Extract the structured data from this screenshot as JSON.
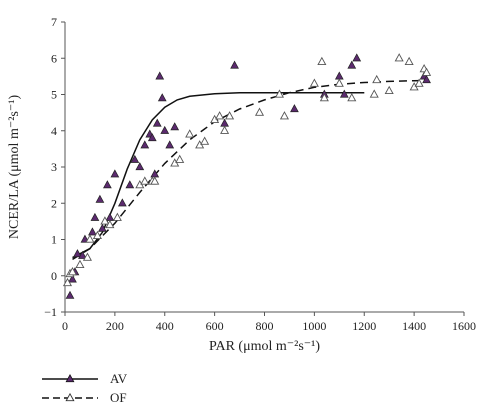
{
  "chart_data": {
    "type": "scatter",
    "xlabel": "PAR (μmol m⁻²s⁻¹)",
    "ylabel": "NCER/LA (μmol m⁻²s⁻¹)",
    "xlim": [
      0,
      1600
    ],
    "ylim": [
      -1,
      7
    ],
    "x_ticks": [
      "0",
      "200",
      "400",
      "600",
      "800",
      "1000",
      "1200",
      "1400",
      "1600"
    ],
    "y_ticks": [
      "−1",
      "0",
      "1",
      "2",
      "3",
      "4",
      "5",
      "6",
      "7"
    ],
    "grid": false,
    "legend_placement": "bottom-left",
    "series": [
      {
        "name": "AV",
        "marker": "filled-triangle",
        "marker_color": "#5b2a6e",
        "line_style": "solid",
        "points": [
          [
            20,
            -0.55
          ],
          [
            30,
            -0.1
          ],
          [
            40,
            0.1
          ],
          [
            50,
            0.6
          ],
          [
            70,
            0.55
          ],
          [
            80,
            1.0
          ],
          [
            110,
            1.2
          ],
          [
            120,
            1.6
          ],
          [
            140,
            2.1
          ],
          [
            150,
            1.3
          ],
          [
            170,
            2.5
          ],
          [
            180,
            1.6
          ],
          [
            200,
            2.8
          ],
          [
            230,
            2.0
          ],
          [
            260,
            2.5
          ],
          [
            280,
            3.2
          ],
          [
            300,
            3.0
          ],
          [
            320,
            3.6
          ],
          [
            340,
            3.9
          ],
          [
            350,
            3.8
          ],
          [
            360,
            2.8
          ],
          [
            370,
            4.2
          ],
          [
            380,
            5.5
          ],
          [
            390,
            4.9
          ],
          [
            400,
            4.0
          ],
          [
            420,
            3.6
          ],
          [
            440,
            4.1
          ],
          [
            640,
            4.2
          ],
          [
            680,
            5.8
          ],
          [
            920,
            4.6
          ],
          [
            1040,
            5.0
          ],
          [
            1100,
            5.5
          ],
          [
            1120,
            5.0
          ],
          [
            1150,
            5.8
          ],
          [
            1170,
            6.0
          ],
          [
            1440,
            5.5
          ],
          [
            1450,
            5.4
          ]
        ],
        "fit_curve": [
          [
            30,
            0.5
          ],
          [
            100,
            0.75
          ],
          [
            150,
            1.2
          ],
          [
            200,
            2.0
          ],
          [
            250,
            2.95
          ],
          [
            300,
            3.75
          ],
          [
            350,
            4.3
          ],
          [
            400,
            4.65
          ],
          [
            450,
            4.85
          ],
          [
            500,
            4.95
          ],
          [
            600,
            5.02
          ],
          [
            700,
            5.05
          ],
          [
            900,
            5.05
          ],
          [
            1200,
            5.05
          ]
        ]
      },
      {
        "name": "OF",
        "marker": "open-triangle",
        "marker_color": "#555555",
        "line_style": "dashed",
        "points": [
          [
            10,
            -0.2
          ],
          [
            20,
            0.05
          ],
          [
            30,
            0.1
          ],
          [
            60,
            0.3
          ],
          [
            90,
            0.5
          ],
          [
            100,
            1.0
          ],
          [
            130,
            1.1
          ],
          [
            160,
            1.5
          ],
          [
            180,
            1.4
          ],
          [
            210,
            1.6
          ],
          [
            300,
            2.5
          ],
          [
            320,
            2.6
          ],
          [
            350,
            2.6
          ],
          [
            360,
            2.6
          ],
          [
            440,
            3.1
          ],
          [
            460,
            3.2
          ],
          [
            500,
            3.9
          ],
          [
            540,
            3.6
          ],
          [
            560,
            3.7
          ],
          [
            600,
            4.3
          ],
          [
            620,
            4.4
          ],
          [
            640,
            4.0
          ],
          [
            660,
            4.4
          ],
          [
            780,
            4.5
          ],
          [
            860,
            5.0
          ],
          [
            880,
            4.4
          ],
          [
            1000,
            5.3
          ],
          [
            1030,
            5.9
          ],
          [
            1040,
            4.9
          ],
          [
            1100,
            5.3
          ],
          [
            1150,
            4.9
          ],
          [
            1240,
            5.0
          ],
          [
            1250,
            5.4
          ],
          [
            1300,
            5.1
          ],
          [
            1340,
            6.0
          ],
          [
            1380,
            5.9
          ],
          [
            1400,
            5.2
          ],
          [
            1420,
            5.3
          ],
          [
            1440,
            5.7
          ],
          [
            1450,
            5.6
          ]
        ],
        "fit_curve": [
          [
            30,
            0.45
          ],
          [
            100,
            0.75
          ],
          [
            200,
            1.45
          ],
          [
            300,
            2.3
          ],
          [
            400,
            3.1
          ],
          [
            500,
            3.75
          ],
          [
            600,
            4.25
          ],
          [
            700,
            4.6
          ],
          [
            800,
            4.85
          ],
          [
            900,
            5.05
          ],
          [
            1000,
            5.2
          ],
          [
            1100,
            5.28
          ],
          [
            1200,
            5.33
          ],
          [
            1300,
            5.36
          ],
          [
            1400,
            5.38
          ],
          [
            1460,
            5.39
          ]
        ]
      }
    ]
  }
}
